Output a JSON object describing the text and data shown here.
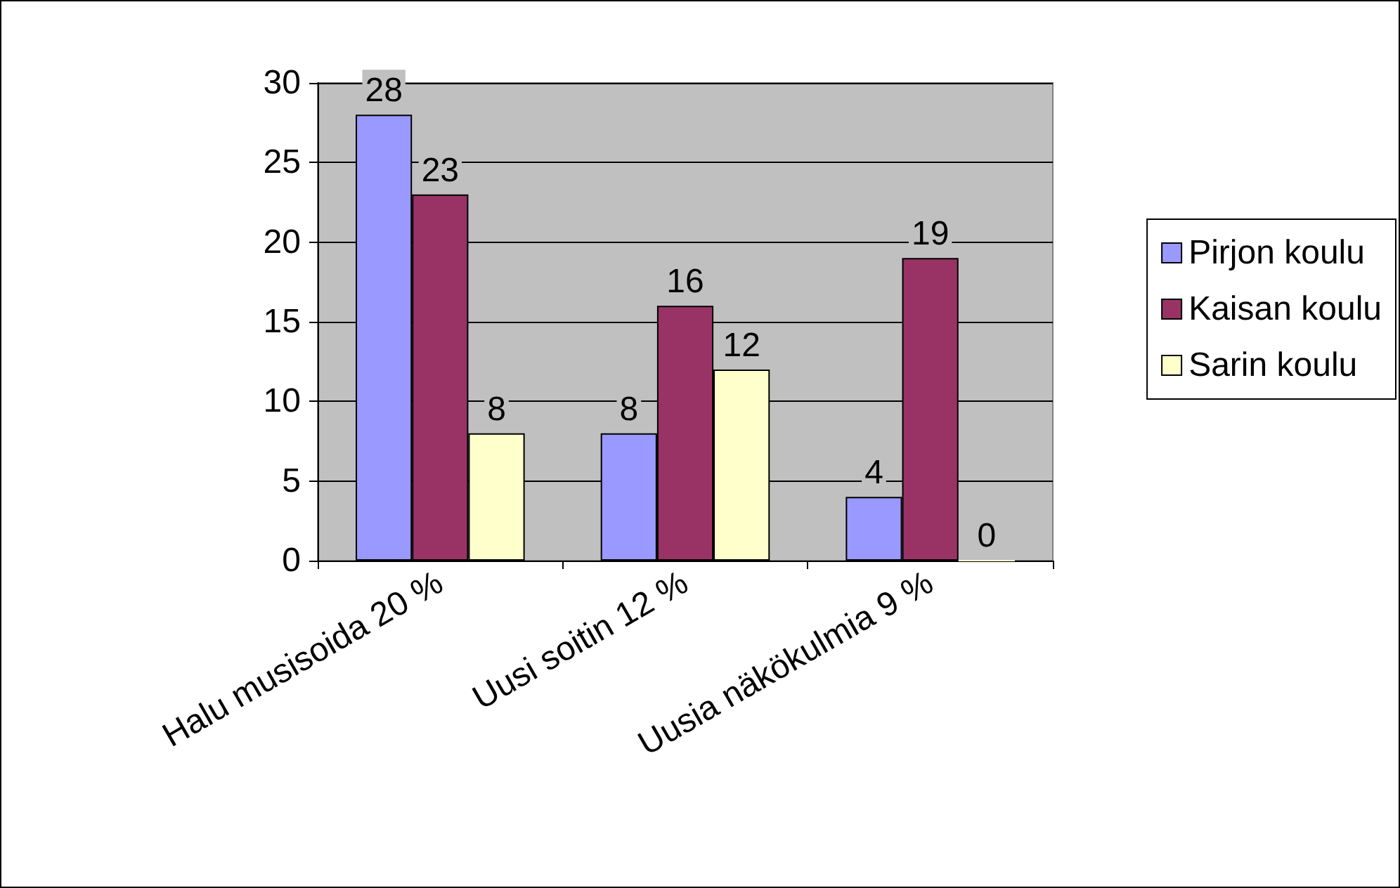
{
  "chart_data": {
    "type": "bar",
    "categories": [
      "Halu musisoida 20 %",
      "Uusi soitin 12 %",
      "Uusia näkökulmia 9 %"
    ],
    "series": [
      {
        "name": "Pirjon koulu",
        "color": "#9999ff",
        "values": [
          28,
          8,
          4
        ]
      },
      {
        "name": "Kaisan koulu",
        "color": "#993366",
        "values": [
          23,
          16,
          19
        ]
      },
      {
        "name": "Sarin koulu",
        "color": "#ffffcc",
        "values": [
          8,
          12,
          0
        ]
      }
    ],
    "ylim": [
      0,
      30
    ],
    "yticks": [
      0,
      5,
      10,
      15,
      20,
      25,
      30
    ],
    "grid": "y",
    "legend": "right",
    "data_labels": true
  }
}
